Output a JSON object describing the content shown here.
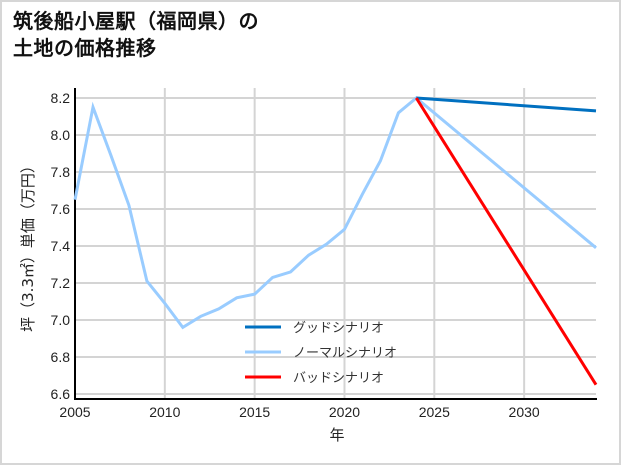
{
  "title": {
    "line1": "筑後船小屋駅（福岡県）の",
    "line2": "土地の価格推移"
  },
  "chart_data": {
    "type": "line",
    "title": "筑後船小屋駅（福岡県）の土地の価格推移",
    "xlabel": "年",
    "ylabel": "坪（3.3㎡）単価（万円）",
    "xlim": [
      2005,
      2034
    ],
    "ylim": [
      6.6,
      8.25
    ],
    "x_ticks": [
      2005,
      2010,
      2015,
      2020,
      2025,
      2030
    ],
    "y_ticks": [
      6.6,
      6.8,
      7.0,
      7.2,
      7.4,
      7.6,
      7.8,
      8.0,
      8.2
    ],
    "y_tick_labels": [
      "6.6",
      "6.8",
      "7.0",
      "7.2",
      "7.4",
      "7.6",
      "7.8",
      "8.0",
      "8.2"
    ],
    "grid": true,
    "legend_position": "lower center",
    "series": [
      {
        "name": "グッドシナリオ",
        "color": "#0070c0",
        "x": [
          2024,
          2034
        ],
        "values": [
          8.2,
          8.13
        ]
      },
      {
        "name": "ノーマルシナリオ",
        "color": "#99ccff",
        "x": [
          2005,
          2006,
          2007,
          2008,
          2009,
          2010,
          2011,
          2012,
          2013,
          2014,
          2015,
          2016,
          2017,
          2018,
          2019,
          2020,
          2021,
          2022,
          2023,
          2024,
          2034
        ],
        "values": [
          7.65,
          8.15,
          7.89,
          7.62,
          7.21,
          7.09,
          6.96,
          7.02,
          7.06,
          7.12,
          7.14,
          7.23,
          7.26,
          7.35,
          7.41,
          7.49,
          7.68,
          7.86,
          8.12,
          8.2,
          7.39
        ]
      },
      {
        "name": "バッドシナリオ",
        "color": "#ff0000",
        "x": [
          2024,
          2034
        ],
        "values": [
          8.2,
          6.65
        ]
      }
    ]
  },
  "legend": {
    "good": "グッドシナリオ",
    "normal": "ノーマルシナリオ",
    "bad": "バッドシナリオ"
  },
  "axes": {
    "xlabel": "年",
    "ylabel": "坪（3.3㎡）単価（万円）"
  }
}
